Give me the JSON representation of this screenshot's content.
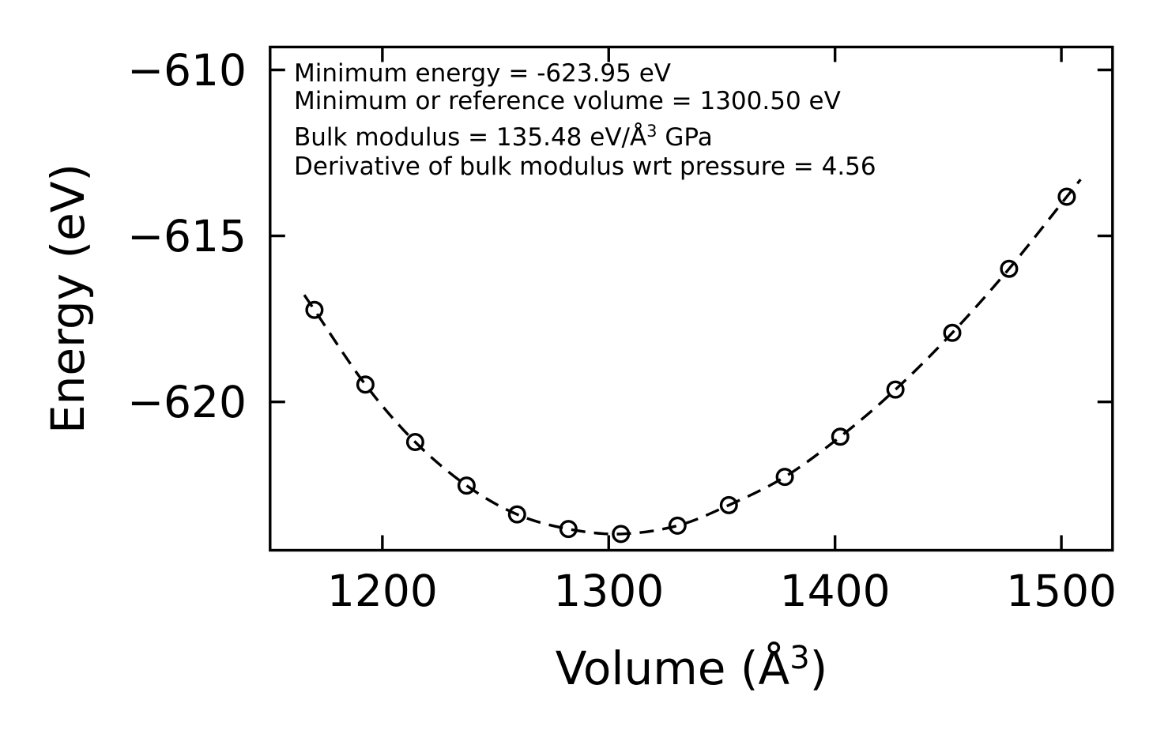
{
  "figure": {
    "background": "#ffffff",
    "ink_color": "#000000"
  },
  "annotation": {
    "line1": "Minimum energy = -623.95 eV",
    "line2": "Minimum or reference volume = 1300.50 eV",
    "line3_prefix": "Bulk modulus = 135.48 eV/Å",
    "line3_sup": "3",
    "line3_suffix": " GPa",
    "line4": "Derivative of bulk modulus wrt pressure = 4.56"
  },
  "chart_data": {
    "type": "scatter",
    "title": "",
    "xlabel": "Volume (Å³)",
    "xlabel_prefix": "Volume (Å",
    "xlabel_sup": "3",
    "xlabel_suffix": ")",
    "ylabel": "Energy (eV)",
    "xlim": [
      1150.4,
      1522.6
    ],
    "ylim": [
      -624.47,
      -609.31
    ],
    "grid": false,
    "legend": "none",
    "x_ticks": [
      {
        "value": 1200,
        "label": "1200"
      },
      {
        "value": 1300,
        "label": "1300"
      },
      {
        "value": 1400,
        "label": "1400"
      },
      {
        "value": 1500,
        "label": "1500"
      }
    ],
    "y_ticks": [
      {
        "value": -610,
        "label": "−610"
      },
      {
        "value": -615,
        "label": "−615"
      },
      {
        "value": -620,
        "label": "−620"
      }
    ],
    "series": [
      {
        "name": "energy-volume-data",
        "type": "scatter",
        "marker": "open-circle",
        "color": "#000000",
        "x": [
          1170.0,
          1192.5,
          1214.5,
          1237.2,
          1259.5,
          1282.2,
          1305.4,
          1330.4,
          1353.1,
          1377.8,
          1402.3,
          1426.7,
          1451.8,
          1476.9,
          1502.4
        ],
        "y": [
          -617.23,
          -619.48,
          -621.21,
          -622.52,
          -623.39,
          -623.83,
          -623.98,
          -623.73,
          -623.11,
          -622.26,
          -621.05,
          -619.63,
          -617.92,
          -615.99,
          -613.82
        ]
      },
      {
        "name": "eos-fit-curve",
        "type": "line",
        "style": "dashed",
        "color": "#000000",
        "comment": "smooth equation-of-state fit drawn through the data points"
      }
    ],
    "annotations": [
      "Minimum energy = -623.95 eV",
      "Minimum or reference volume = 1300.50 eV",
      "Bulk modulus = 135.48 eV/Å³ GPa",
      "Derivative of bulk modulus wrt pressure = 4.56"
    ]
  }
}
